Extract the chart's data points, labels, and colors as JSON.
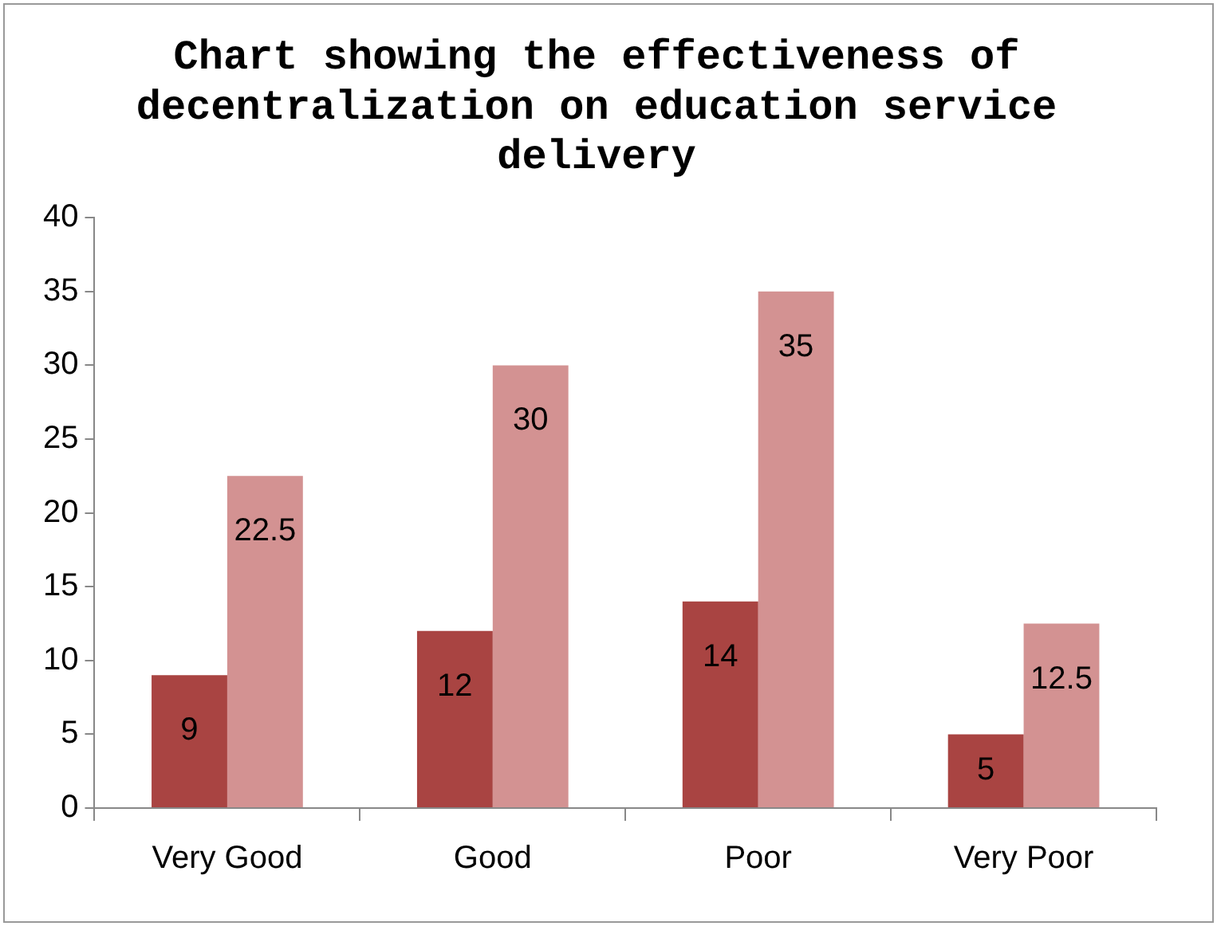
{
  "chart_data": {
    "type": "bar",
    "title": "Chart showing the effectiveness of decentralization on education service delivery",
    "categories": [
      "Very Good",
      "Good",
      "Poor",
      "Very Poor"
    ],
    "series": [
      {
        "color": "#a94442",
        "values": [
          9,
          12,
          14,
          5
        ]
      },
      {
        "color": "#d39292",
        "values": [
          22.5,
          30,
          35,
          12.5
        ]
      }
    ],
    "ylim": [
      0,
      40
    ],
    "yticks": [
      0,
      5,
      10,
      15,
      20,
      25,
      30,
      35,
      40
    ],
    "grid": false,
    "legend": false,
    "data_labels": true
  }
}
